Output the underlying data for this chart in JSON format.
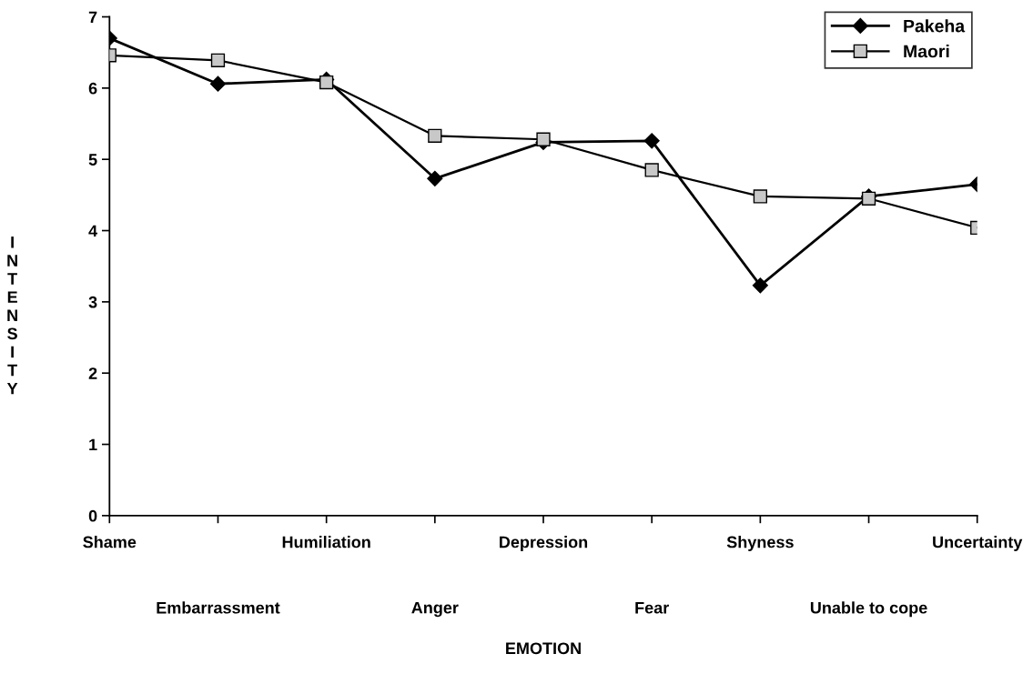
{
  "chart_data": {
    "type": "line",
    "xlabel": "EMOTION",
    "ylabel": "INTENSITY",
    "categories": [
      "Shame",
      "Embarrassment",
      "Humiliation",
      "Anger",
      "Depression",
      "Fear",
      "Shyness",
      "Unable to cope",
      "Uncertainty"
    ],
    "series": [
      {
        "name": "Pakeha",
        "color": "#000000",
        "marker": "diamond",
        "values": [
          6.7,
          6.06,
          6.12,
          4.73,
          5.24,
          5.26,
          3.23,
          4.48,
          4.65
        ]
      },
      {
        "name": "Maori",
        "color": "#000000",
        "marker": "square",
        "values": [
          6.46,
          6.39,
          6.08,
          5.33,
          5.28,
          4.85,
          4.48,
          4.45,
          4.04
        ]
      }
    ],
    "ylim": [
      0,
      7
    ],
    "yticks": [
      0,
      1,
      2,
      3,
      4,
      5,
      6,
      7
    ],
    "grid": false,
    "legend": "top right",
    "line_style": "solid"
  }
}
